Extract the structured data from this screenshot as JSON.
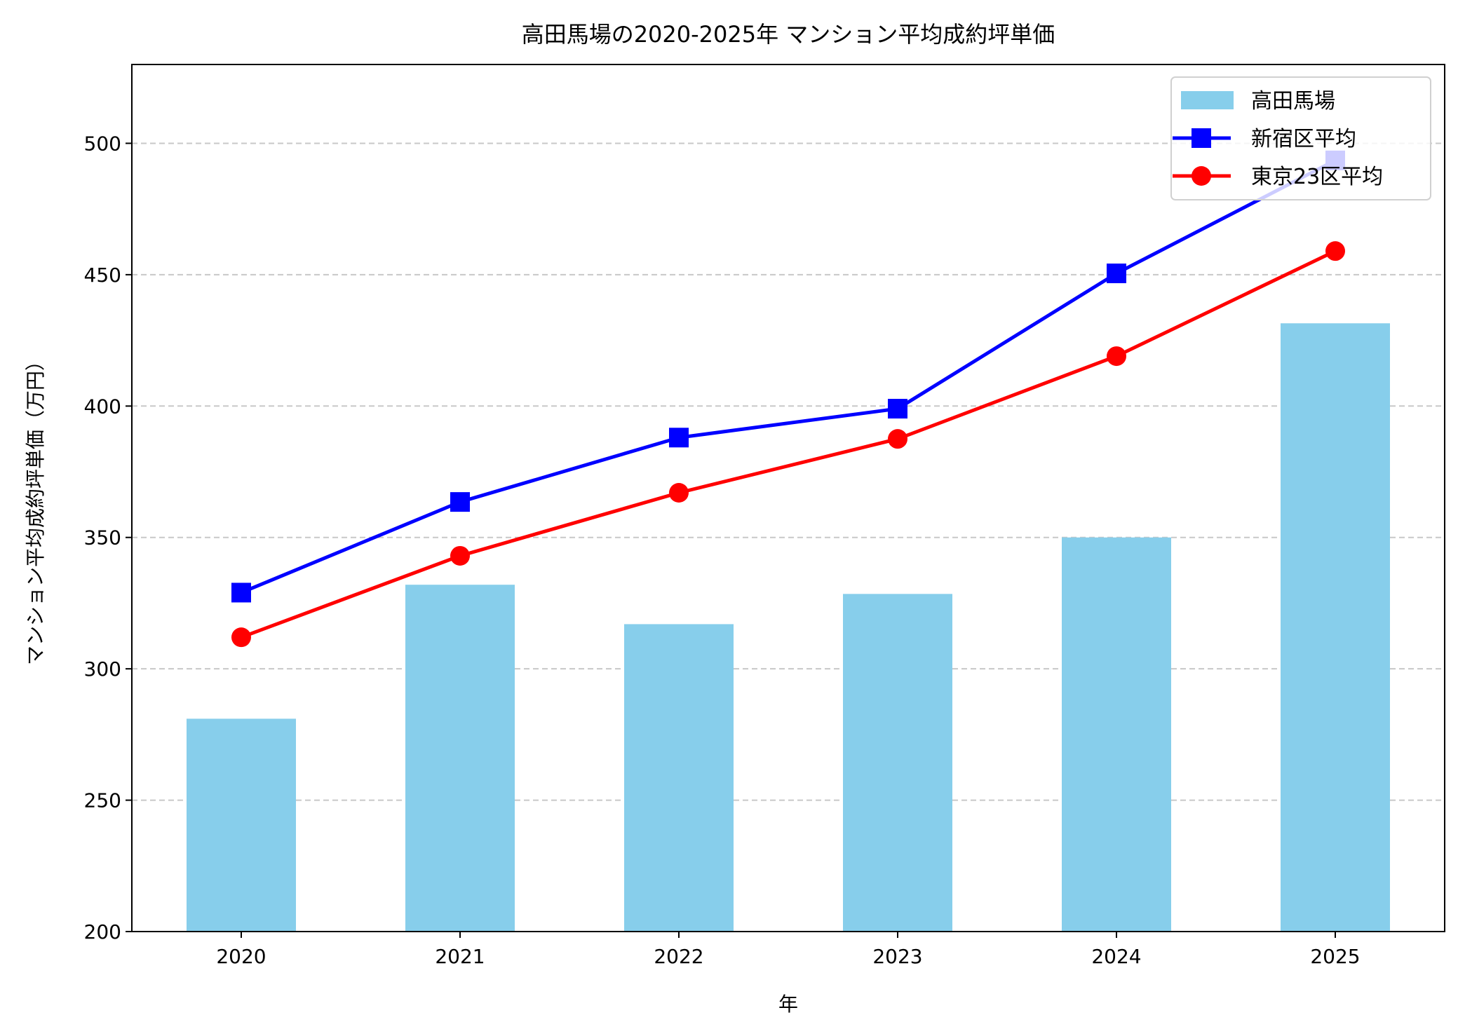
{
  "chart_data": {
    "type": "bar+line",
    "title": "高田馬場の2020-2025年 マンション平均成約坪単価",
    "xlabel": "年",
    "ylabel": "マンション平均成約坪単価（万円）",
    "categories": [
      "2020",
      "2021",
      "2022",
      "2023",
      "2024",
      "2025"
    ],
    "ylim": [
      200,
      530
    ],
    "yticks": [
      200,
      250,
      300,
      350,
      400,
      450,
      500
    ],
    "grid": "y-dashed",
    "legend_position": "top-right",
    "series": [
      {
        "name": "高田馬場",
        "type": "bar",
        "color": "#87CEEB",
        "values": [
          281,
          332,
          317,
          328.5,
          350,
          431.5
        ]
      },
      {
        "name": "新宿区平均",
        "type": "line",
        "marker": "square",
        "color": "#0000FF",
        "values": [
          329,
          363.5,
          388,
          399,
          450.5,
          493.5
        ]
      },
      {
        "name": "東京23区平均",
        "type": "line",
        "marker": "circle",
        "color": "#FF0000",
        "values": [
          312,
          343,
          367,
          387.5,
          419,
          459
        ]
      }
    ]
  }
}
